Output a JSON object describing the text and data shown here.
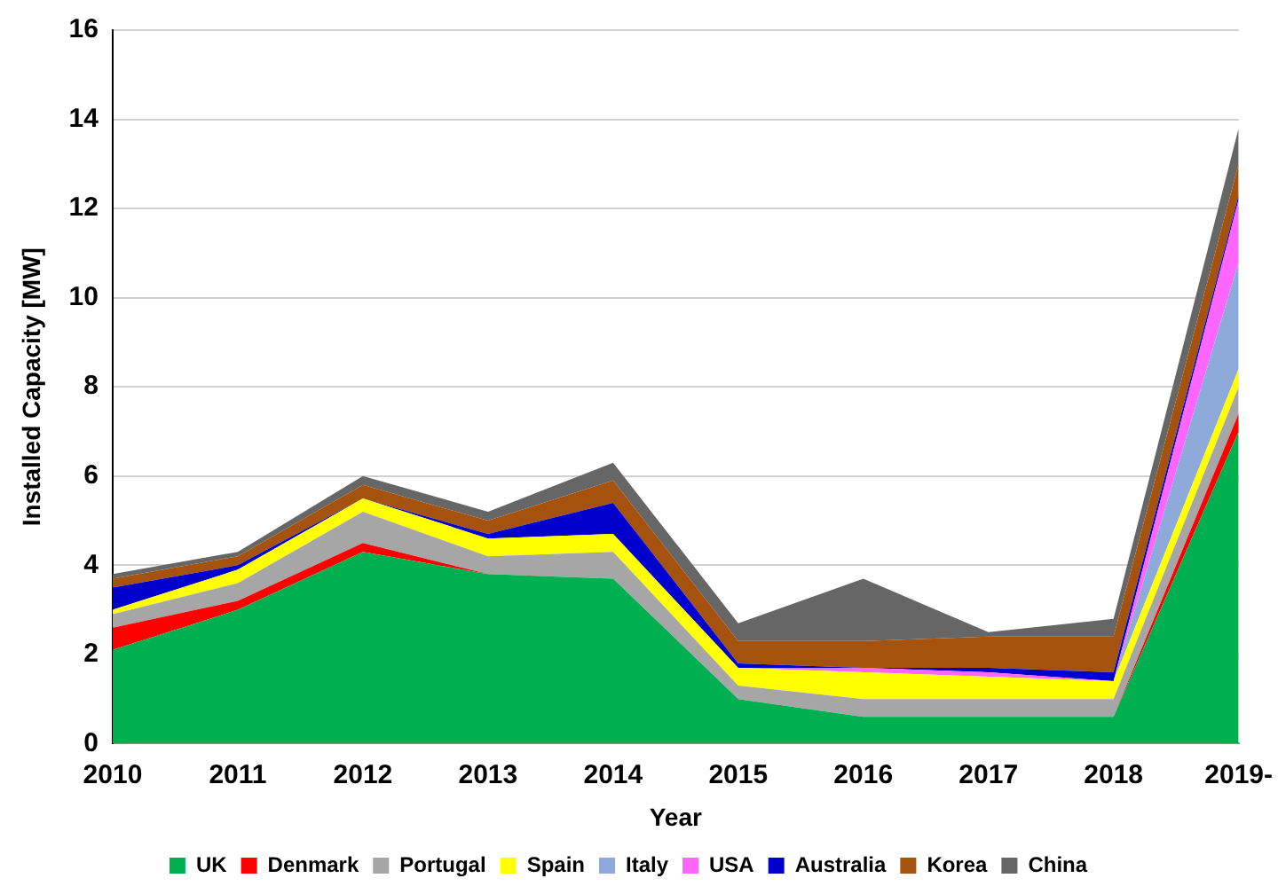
{
  "chart_data": {
    "type": "area",
    "stacked": true,
    "xlabel": "Year",
    "ylabel": "Installed Capacity [MW]",
    "categories": [
      "2010",
      "2011",
      "2012",
      "2013",
      "2014",
      "2015",
      "2016",
      "2017",
      "2018",
      "2019-"
    ],
    "ylim": [
      0,
      16
    ],
    "yticks": [
      0,
      2,
      4,
      6,
      8,
      10,
      12,
      14,
      16
    ],
    "grid": "y",
    "legend": "bottom",
    "series": [
      {
        "name": "UK",
        "color": "#00b050",
        "values": [
          2.1,
          3.0,
          4.3,
          3.8,
          3.7,
          1.0,
          0.6,
          0.6,
          0.6,
          7.0
        ]
      },
      {
        "name": "Denmark",
        "color": "#ff0000",
        "values": [
          0.5,
          0.2,
          0.2,
          0,
          0,
          0,
          0,
          0,
          0,
          0.4
        ]
      },
      {
        "name": "Portugal",
        "color": "#a6a6a6",
        "values": [
          0.3,
          0.4,
          0.7,
          0.4,
          0.6,
          0.3,
          0.4,
          0.4,
          0.4,
          0.6
        ]
      },
      {
        "name": "Spain",
        "color": "#ffff00",
        "values": [
          0.1,
          0.3,
          0.3,
          0.4,
          0.4,
          0.4,
          0.6,
          0.5,
          0.4,
          0.4
        ]
      },
      {
        "name": "Italy",
        "color": "#8eaadb",
        "values": [
          0,
          0,
          0,
          0,
          0,
          0,
          0,
          0,
          0,
          2.4
        ]
      },
      {
        "name": "USA",
        "color": "#ff66ff",
        "values": [
          0,
          0,
          0,
          0,
          0,
          0,
          0.1,
          0.1,
          0,
          1.4
        ]
      },
      {
        "name": "Australia",
        "color": "#0000cc",
        "values": [
          0.5,
          0.1,
          0,
          0.1,
          0.7,
          0.1,
          0,
          0.1,
          0.2,
          0.1
        ]
      },
      {
        "name": "Korea",
        "color": "#a5520f",
        "values": [
          0.2,
          0.2,
          0.3,
          0.3,
          0.5,
          0.5,
          0.6,
          0.7,
          0.8,
          0.7
        ]
      },
      {
        "name": "China",
        "color": "#666666",
        "values": [
          0.1,
          0.1,
          0.2,
          0.2,
          0.4,
          0.4,
          1.4,
          0.1,
          0.4,
          0.8
        ]
      }
    ]
  }
}
